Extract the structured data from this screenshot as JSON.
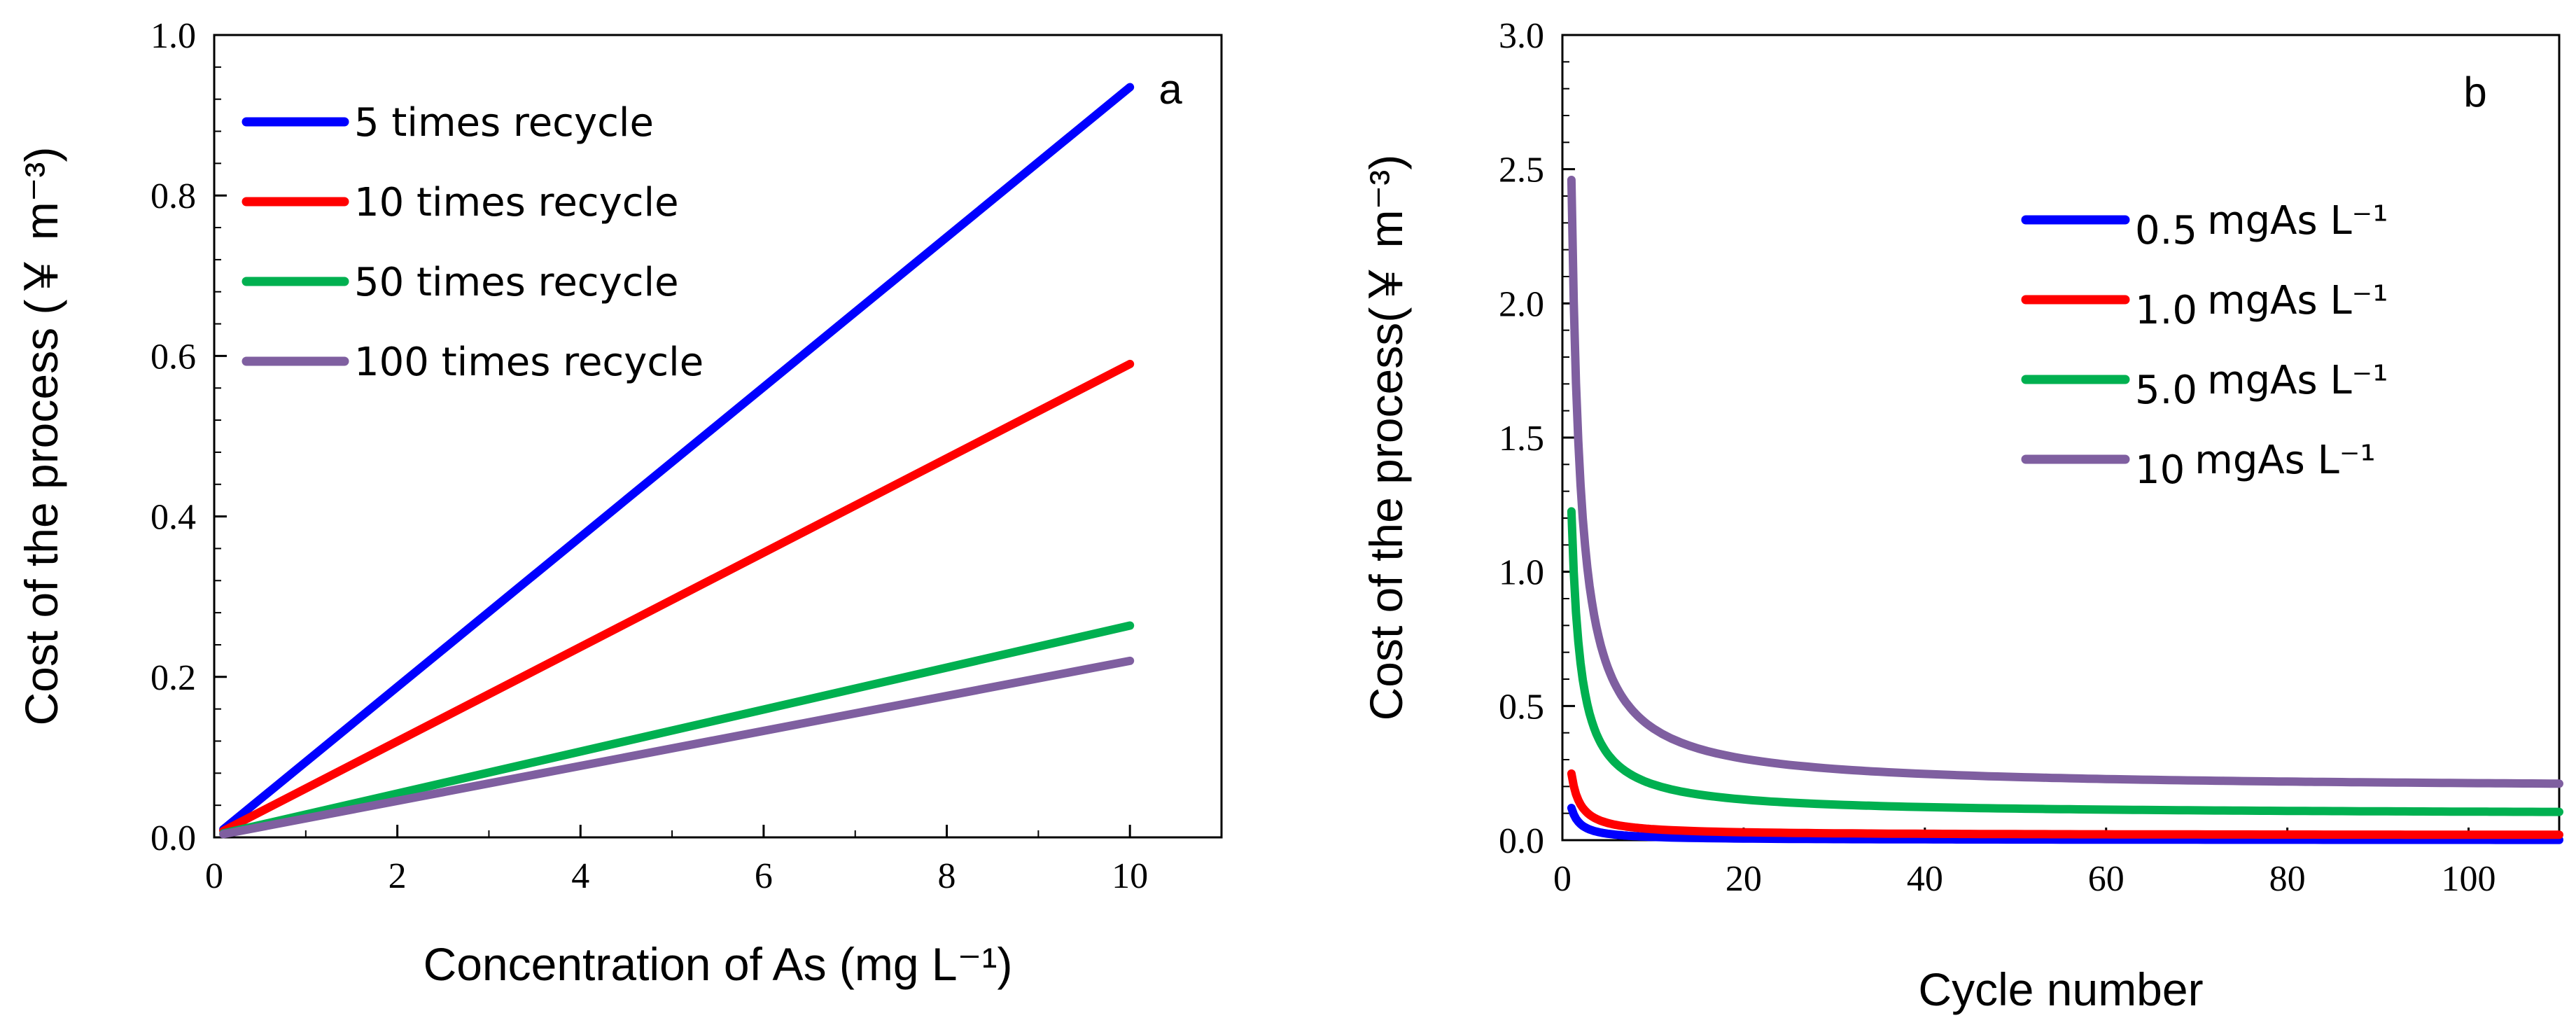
{
  "chart_data": [
    {
      "type": "line",
      "panel_label": "a",
      "xlabel": "Concentration of As (mg L⁻¹)",
      "ylabel": "Cost of the process (￥ m⁻³)",
      "xlim": [
        0,
        11
      ],
      "ylim": [
        0,
        1.0
      ],
      "xticks": [
        0,
        2,
        4,
        6,
        8,
        10
      ],
      "xtick_labels": [
        "0",
        "2",
        "4",
        "6",
        "8",
        "10"
      ],
      "yticks": [
        0,
        0.2,
        0.4,
        0.6,
        0.8,
        1.0
      ],
      "ytick_labels": [
        "0.0",
        "0.2",
        "0.4",
        "0.6",
        "0.8",
        "1.0"
      ],
      "legend_position": "top-left",
      "series": [
        {
          "name": "5 times recycle",
          "color": "#0000ff",
          "x": [
            0.1,
            10
          ],
          "y": [
            0.01,
            0.935
          ]
        },
        {
          "name": "10 times recycle",
          "color": "#ff0000",
          "x": [
            0.1,
            10
          ],
          "y": [
            0.008,
            0.59
          ]
        },
        {
          "name": "50 times recycle",
          "color": "#00b050",
          "x": [
            0.1,
            10
          ],
          "y": [
            0.005,
            0.264
          ]
        },
        {
          "name": "100 times recycle",
          "color": "#7f5fa0",
          "x": [
            0.1,
            10
          ],
          "y": [
            0.004,
            0.22
          ]
        }
      ]
    },
    {
      "type": "line",
      "panel_label": "b",
      "xlabel": "Cycle number",
      "ylabel": "Cost of the process(￥ m⁻³)",
      "xlim": [
        0,
        110
      ],
      "ylim": [
        0,
        3.0
      ],
      "xticks": [
        0,
        20,
        40,
        60,
        80,
        100
      ],
      "xtick_labels": [
        "0",
        "20",
        "40",
        "60",
        "80",
        "100"
      ],
      "yticks": [
        0,
        0.5,
        1.0,
        1.5,
        2.0,
        2.5,
        3.0
      ],
      "ytick_labels": [
        "0.0",
        "0.5",
        "1.0",
        "1.5",
        "2.0",
        "2.5",
        "3.0"
      ],
      "legend_position": "top-right",
      "series": [
        {
          "name": "0.5 mgAs L⁻¹",
          "label_main": "0.5",
          "label_unit": "mgAs L⁻¹",
          "color": "#0000ff",
          "model": "a/n^p + c",
          "a": 0.12,
          "p": 1.0,
          "c": 0.0
        },
        {
          "name": "1.0 mgAs L⁻¹",
          "label_main": "1.0",
          "label_unit": "mgAs L⁻¹",
          "color": "#ff0000",
          "model": "a/n^p + c",
          "a": 0.23,
          "p": 1.0,
          "c": 0.018
        },
        {
          "name": "5.0 mgAs L⁻¹",
          "label_main": "5.0",
          "label_unit": "mgAs L⁻¹",
          "color": "#00b050",
          "model": "a/n^p + c",
          "a": 1.13,
          "p": 1.0,
          "c": 0.095
        },
        {
          "name": "10 mgAs L⁻¹",
          "label_main": "10",
          "label_unit": "mgAs L⁻¹",
          "color": "#7f5fa0",
          "model": "a/n^p + c",
          "a": 2.27,
          "p": 1.0,
          "c": 0.19
        }
      ]
    }
  ]
}
